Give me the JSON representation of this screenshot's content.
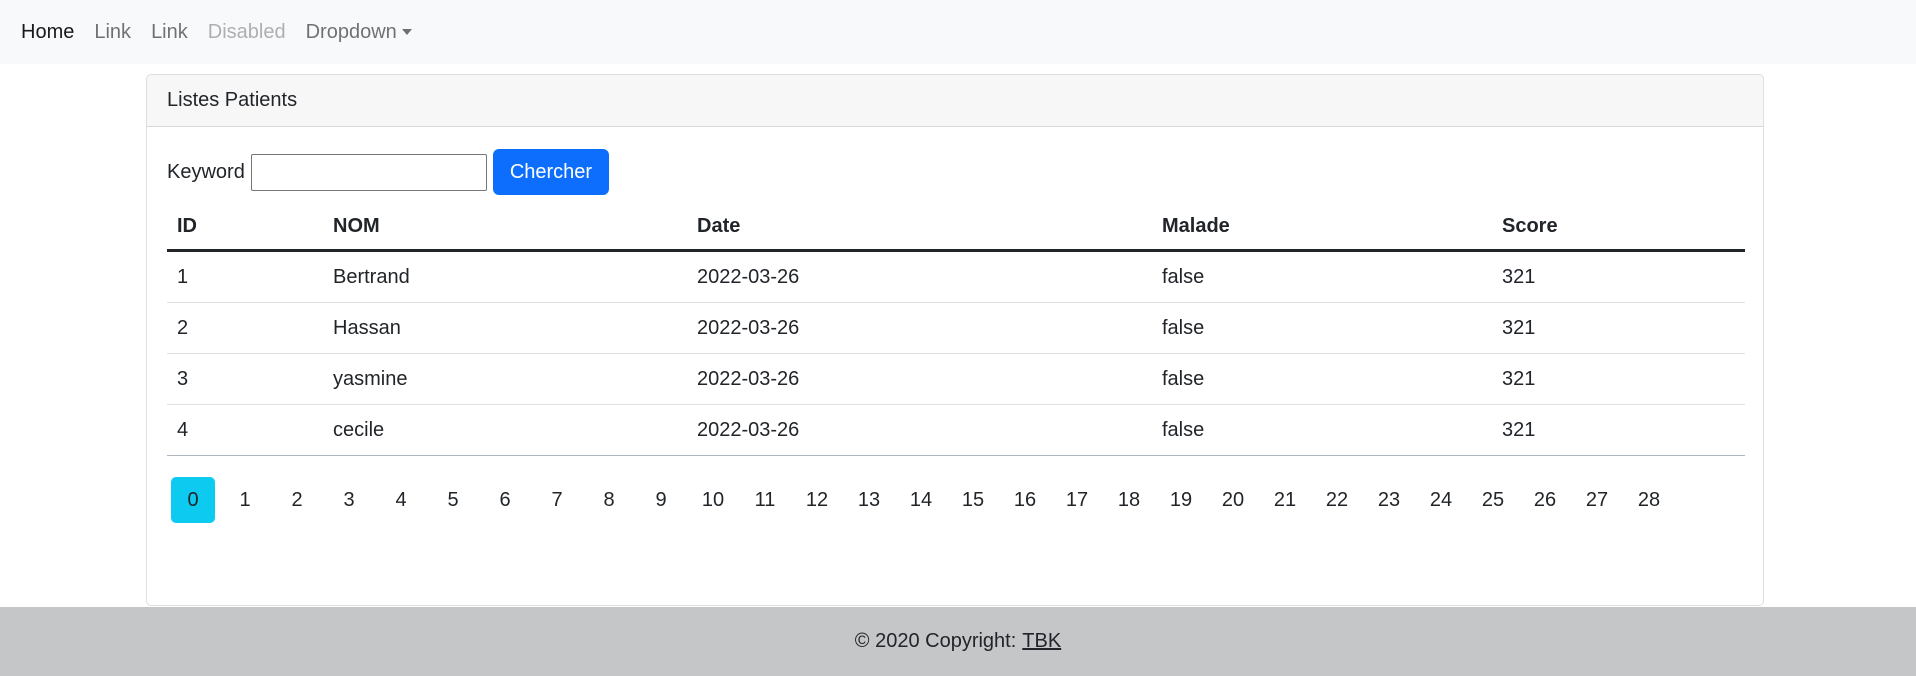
{
  "nav": {
    "items": [
      {
        "label": "Home",
        "state": "active"
      },
      {
        "label": "Link",
        "state": "normal"
      },
      {
        "label": "Link",
        "state": "normal"
      },
      {
        "label": "Disabled",
        "state": "disabled"
      },
      {
        "label": "Dropdown",
        "state": "dropdown"
      }
    ]
  },
  "card": {
    "header": "Listes Patients",
    "search": {
      "label": "Keyword",
      "value": "",
      "button": "Chercher"
    },
    "table": {
      "columns": [
        "ID",
        "NOM",
        "Date",
        "Malade",
        "Score"
      ],
      "rows": [
        [
          "1",
          "Bertrand",
          "2022-03-26",
          "false",
          "321"
        ],
        [
          "2",
          "Hassan",
          "2022-03-26",
          "false",
          "321"
        ],
        [
          "3",
          "yasmine",
          "2022-03-26",
          "false",
          "321"
        ],
        [
          "4",
          "cecile",
          "2022-03-26",
          "false",
          "321"
        ]
      ]
    },
    "pagination": {
      "pages": [
        "0",
        "1",
        "2",
        "3",
        "4",
        "5",
        "6",
        "7",
        "8",
        "9",
        "10",
        "11",
        "12",
        "13",
        "14",
        "15",
        "16",
        "17",
        "18",
        "19",
        "20",
        "21",
        "22",
        "23",
        "24",
        "25",
        "26",
        "27",
        "28"
      ],
      "current": "0"
    }
  },
  "footer": {
    "text": "© 2020 Copyright:",
    "link": "TBK"
  },
  "colors": {
    "primary": "#0d6efd",
    "active_page": "#0dcaf0",
    "navbar_bg": "#f8f9fa",
    "footer_bg": "#c5c6c8"
  }
}
